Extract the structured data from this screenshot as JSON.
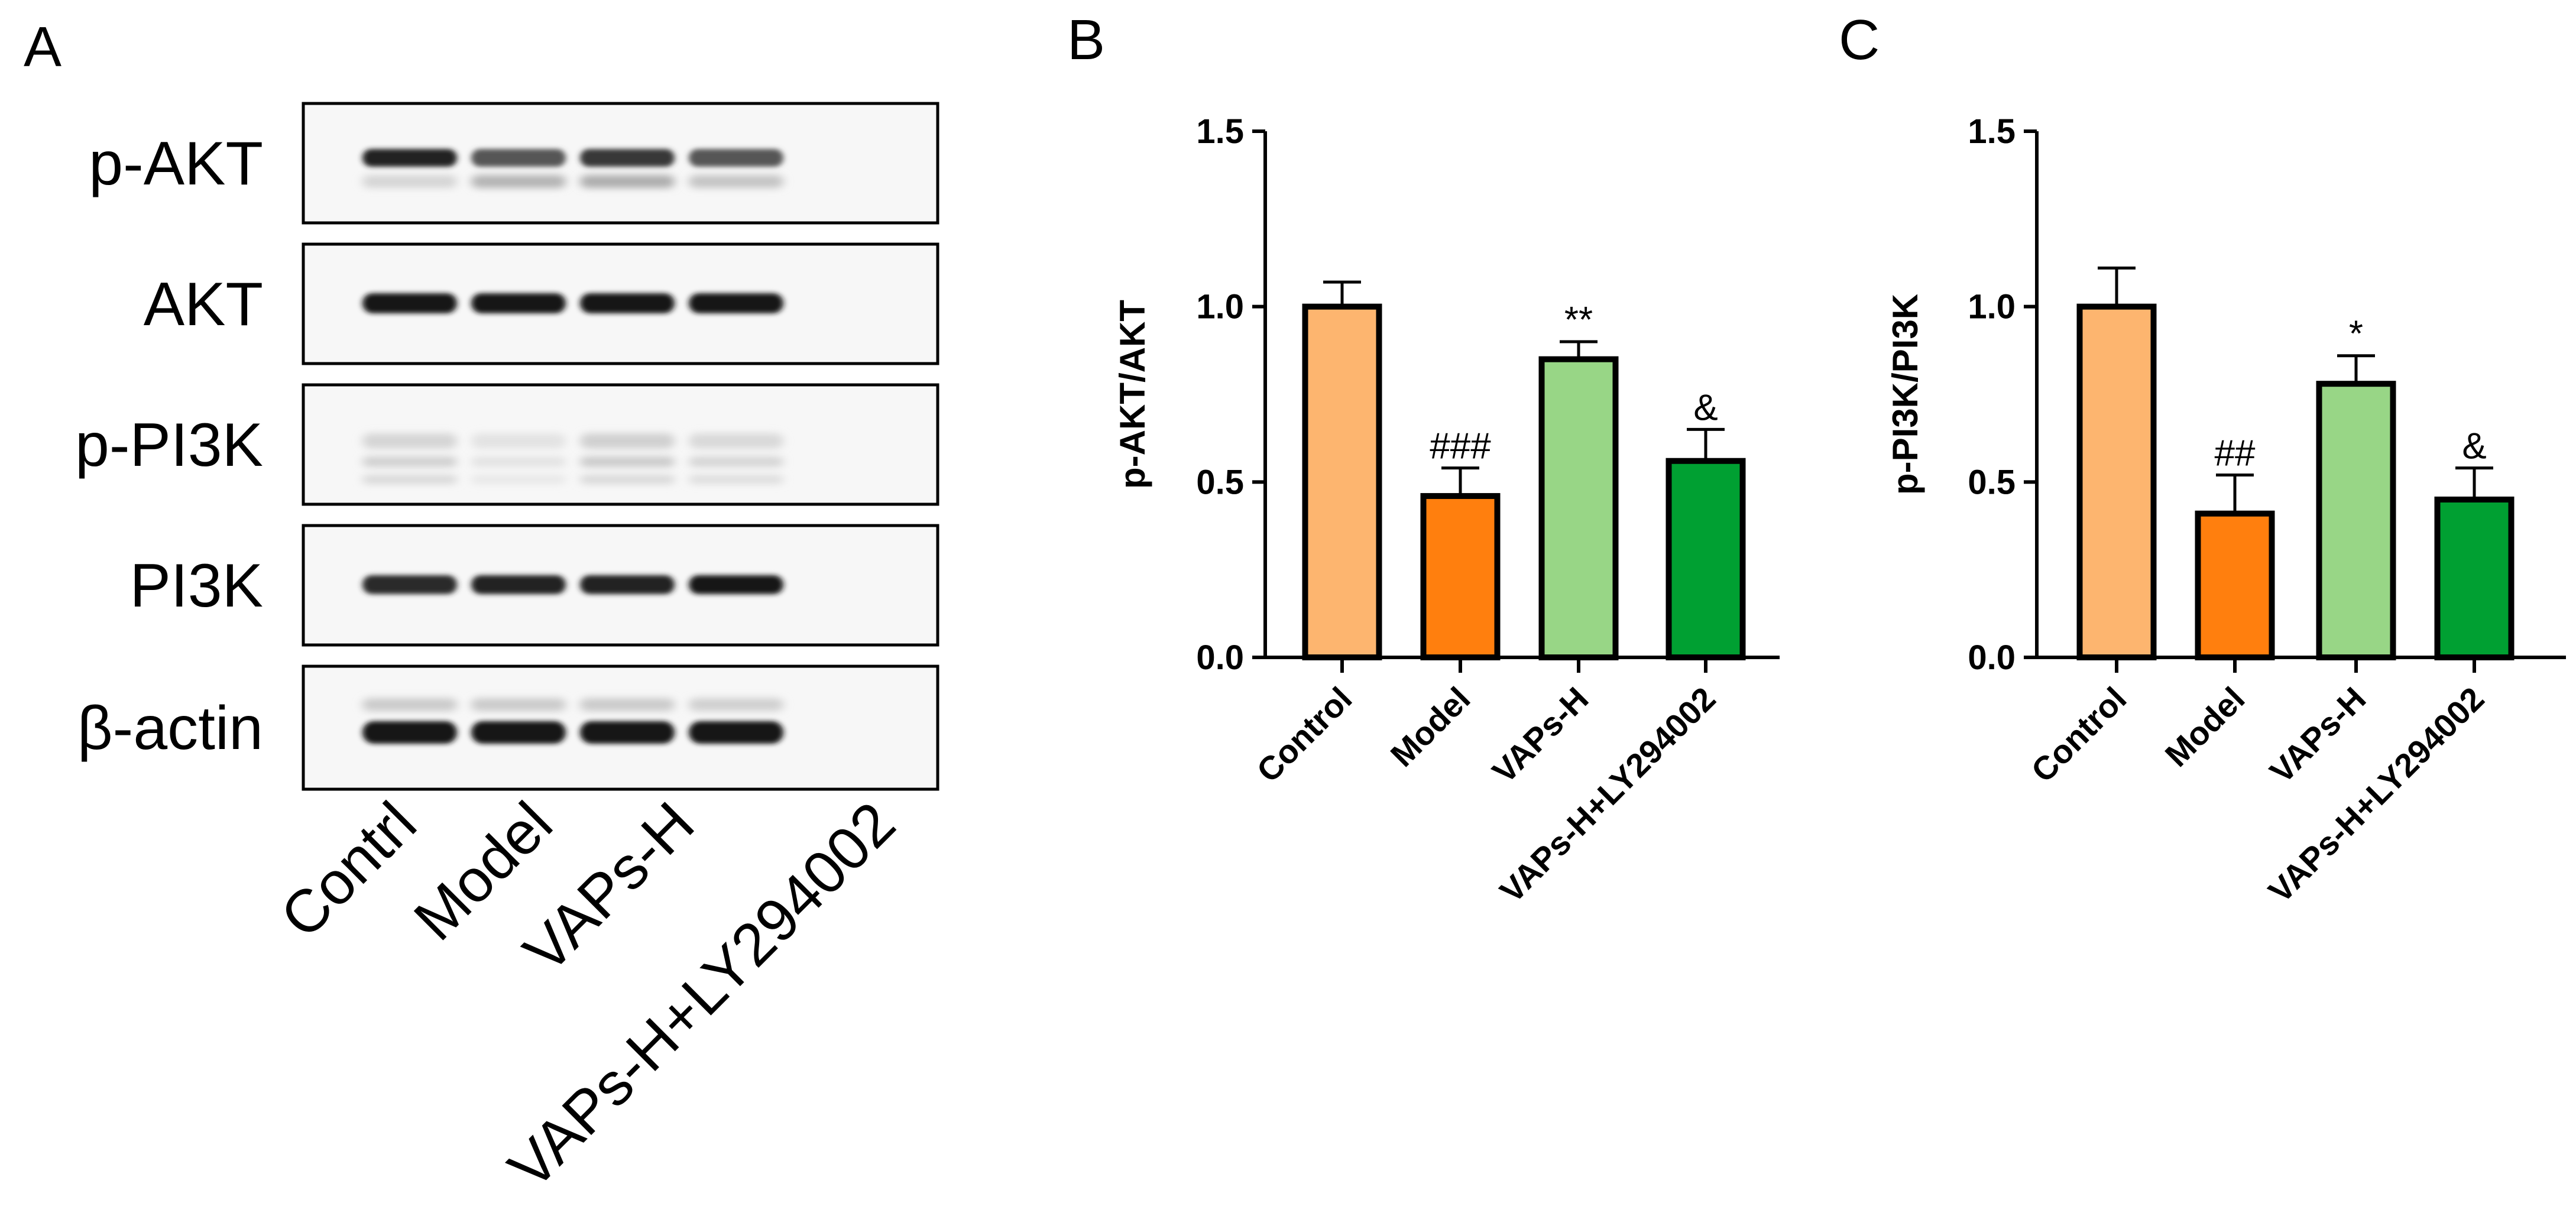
{
  "panel_a": {
    "letter": "A",
    "blot_labels": [
      "p-AKT",
      "AKT",
      "p-PI3K",
      "PI3K",
      "β-actin"
    ],
    "lane_labels": [
      "Contrl",
      "Model",
      "VAPs-H",
      "VAPs-H+LY294002"
    ]
  },
  "chart_data": [
    {
      "panel": "B",
      "type": "bar",
      "title": "",
      "xlabel": "",
      "ylabel": "p-AKT/AKT",
      "ylim": [
        0,
        1.5
      ],
      "yticks": [
        "0.0",
        "0.5",
        "1.0",
        "1.5"
      ],
      "grid": false,
      "categories": [
        "Control",
        "Model",
        "VAPs-H",
        "VAPs-H+LY294002"
      ],
      "values": [
        1.0,
        0.46,
        0.85,
        0.56
      ],
      "errors": [
        0.07,
        0.08,
        0.05,
        0.09
      ],
      "significance": [
        "",
        "###",
        "**",
        "&"
      ],
      "colors": [
        "#FDB56F",
        "#FF7F0E",
        "#98D686",
        "#00A032"
      ]
    },
    {
      "panel": "C",
      "type": "bar",
      "title": "",
      "xlabel": "",
      "ylabel": "p-PI3K/PI3K",
      "ylim": [
        0,
        1.5
      ],
      "yticks": [
        "0.0",
        "0.5",
        "1.0",
        "1.5"
      ],
      "grid": false,
      "categories": [
        "Control",
        "Model",
        "VAPs-H",
        "VAPs-H+LY294002"
      ],
      "values": [
        1.0,
        0.41,
        0.78,
        0.45
      ],
      "errors": [
        0.11,
        0.11,
        0.08,
        0.09
      ],
      "significance": [
        "",
        "##",
        "*",
        "&"
      ],
      "colors": [
        "#FDB56F",
        "#FF7F0E",
        "#98D686",
        "#00A032"
      ]
    }
  ]
}
